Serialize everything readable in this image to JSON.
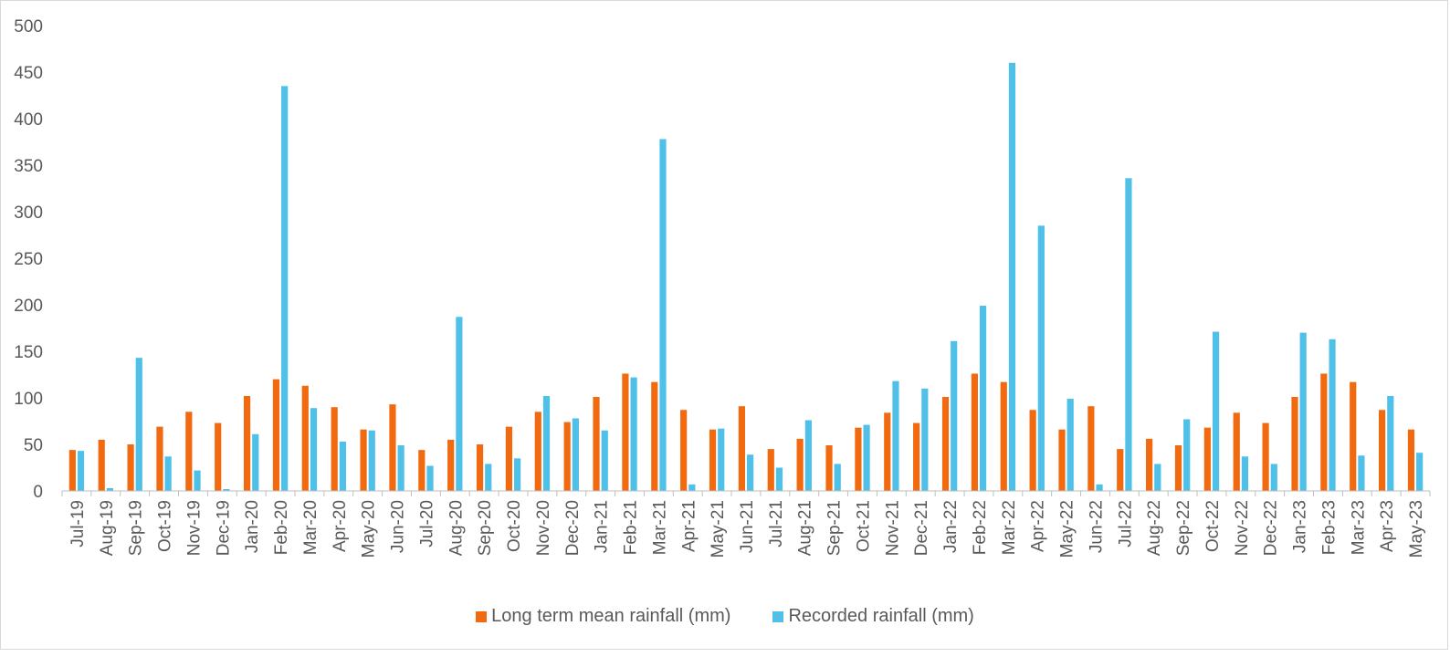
{
  "chart_data": {
    "type": "bar",
    "title": "",
    "xlabel": "",
    "ylabel": "",
    "ylim": [
      0,
      500
    ],
    "yticks": [
      0,
      50,
      100,
      150,
      200,
      250,
      300,
      350,
      400,
      450,
      500
    ],
    "grid": false,
    "legend_position": "bottom",
    "categories": [
      "Jul-19",
      "Aug-19",
      "Sep-19",
      "Oct-19",
      "Nov-19",
      "Dec-19",
      "Jan-20",
      "Feb-20",
      "Mar-20",
      "Apr-20",
      "May-20",
      "Jun-20",
      "Jul-20",
      "Aug-20",
      "Sep-20",
      "Oct-20",
      "Nov-20",
      "Dec-20",
      "Jan-21",
      "Feb-21",
      "Mar-21",
      "Apr-21",
      "May-21",
      "Jun-21",
      "Jul-21",
      "Aug-21",
      "Sep-21",
      "Oct-21",
      "Nov-21",
      "Dec-21",
      "Jan-22",
      "Feb-22",
      "Mar-22",
      "Apr-22",
      "May-22",
      "Jun-22",
      "Jul-22",
      "Aug-22",
      "Sep-22",
      "Oct-22",
      "Nov-22",
      "Dec-22",
      "Jan-23",
      "Feb-23",
      "Mar-23",
      "Apr-23",
      "May-23"
    ],
    "series": [
      {
        "name": "Long term mean rainfall (mm)",
        "color": "#f26a0f",
        "values": [
          44,
          55,
          50,
          69,
          85,
          73,
          102,
          120,
          113,
          90,
          66,
          93,
          44,
          55,
          50,
          69,
          85,
          74,
          101,
          126,
          117,
          87,
          66,
          91,
          45,
          56,
          49,
          68,
          84,
          73,
          101,
          126,
          117,
          87,
          66,
          91,
          45,
          56,
          49,
          68,
          84,
          73,
          101,
          126,
          117,
          87,
          66
        ]
      },
      {
        "name": "Recorded rainfall (mm)",
        "color": "#4fc1e9",
        "values": [
          43,
          3,
          143,
          37,
          22,
          2,
          61,
          435,
          89,
          53,
          65,
          49,
          27,
          187,
          29,
          35,
          102,
          78,
          65,
          122,
          378,
          7,
          67,
          39,
          25,
          76,
          29,
          71,
          118,
          110,
          161,
          199,
          460,
          285,
          99,
          7,
          336,
          29,
          77,
          171,
          37,
          29,
          170,
          163,
          38,
          102,
          41
        ]
      }
    ]
  }
}
